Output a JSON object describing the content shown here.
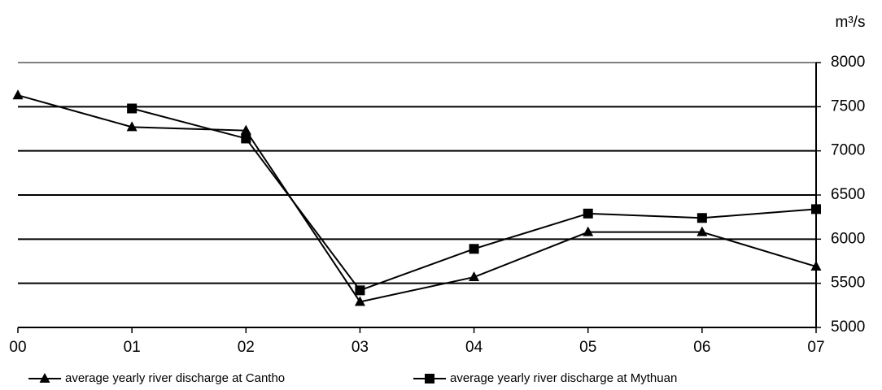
{
  "chart_data": {
    "type": "line",
    "y_axis_label": "m³/s",
    "categories": [
      "00",
      "01",
      "02",
      "03",
      "04",
      "05",
      "06",
      "07"
    ],
    "series": [
      {
        "name": "average yearly river discharge at Cantho",
        "color": "#000000",
        "marker": "triangle",
        "values": [
          7630,
          7270,
          7230,
          5290,
          5570,
          6080,
          6080,
          5690
        ]
      },
      {
        "name": "average yearly river discharge at Mythuan",
        "color": "#000000",
        "marker": "square",
        "values": [
          null,
          7480,
          7140,
          5420,
          5890,
          6290,
          6240,
          6340
        ]
      }
    ],
    "ylim": [
      5000,
      8000
    ],
    "yticks": [
      5000,
      5500,
      6000,
      6500,
      7000,
      7500,
      8000
    ],
    "grid": true
  }
}
